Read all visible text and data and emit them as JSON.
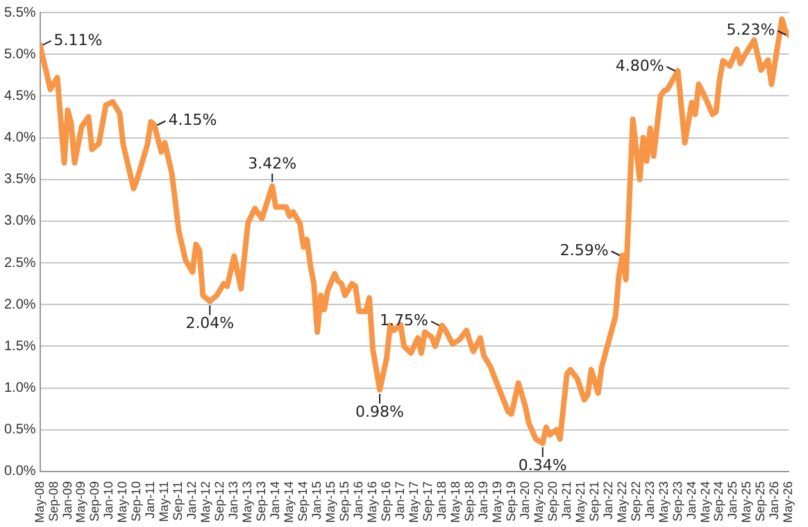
{
  "chart_data": {
    "type": "line",
    "x": [
      "2008-05",
      "2008-08",
      "2008-10",
      "2008-12",
      "2009-01",
      "2009-02",
      "2009-03",
      "2009-05",
      "2009-07",
      "2009-08",
      "2009-10",
      "2009-12",
      "2010-02",
      "2010-04",
      "2010-05",
      "2010-08",
      "2010-09",
      "2010-12",
      "2011-01",
      "2011-02",
      "2011-04",
      "2011-05",
      "2011-07",
      "2011-08",
      "2011-09",
      "2011-11",
      "2012-01",
      "2012-02",
      "2012-03",
      "2012-04",
      "2012-06",
      "2012-08",
      "2012-10",
      "2012-11",
      "2013-01",
      "2013-03",
      "2013-05",
      "2013-07",
      "2013-09",
      "2013-12",
      "2014-01",
      "2014-04",
      "2014-05",
      "2014-06",
      "2014-08",
      "2014-09",
      "2014-10",
      "2014-11",
      "2014-12",
      "2015-01",
      "2015-02",
      "2015-03",
      "2015-04",
      "2015-06",
      "2015-07",
      "2015-08",
      "2015-09",
      "2015-11",
      "2015-12",
      "2016-01",
      "2016-03",
      "2016-04",
      "2016-05",
      "2016-07",
      "2016-09",
      "2016-10",
      "2016-11",
      "2017-01",
      "2017-02",
      "2017-04",
      "2017-06",
      "2017-07",
      "2017-08",
      "2017-10",
      "2017-11",
      "2018-01",
      "2018-02",
      "2018-04",
      "2018-06",
      "2018-08",
      "2018-09",
      "2018-10",
      "2018-12",
      "2019-01",
      "2019-03",
      "2019-04",
      "2019-08",
      "2019-09",
      "2019-11",
      "2020-01",
      "2020-02",
      "2020-04",
      "2020-06",
      "2020-07",
      "2020-08",
      "2020-10",
      "2020-11",
      "2021-01",
      "2021-02",
      "2021-04",
      "2021-06",
      "2021-07",
      "2021-08",
      "2021-10",
      "2021-11",
      "2022-03",
      "2022-04",
      "2022-05",
      "2022-06",
      "2022-08",
      "2022-10",
      "2022-11",
      "2022-12",
      "2023-01",
      "2023-02",
      "2023-04",
      "2023-05",
      "2023-06",
      "2023-09",
      "2023-11",
      "2024-01",
      "2024-02",
      "2024-03",
      "2024-05",
      "2024-07",
      "2024-08",
      "2024-09",
      "2024-10",
      "2024-12",
      "2025-02",
      "2025-03",
      "2025-04",
      "2025-07",
      "2025-09",
      "2025-11",
      "2025-12",
      "2026-03",
      "2026-04",
      "2026-05"
    ],
    "series": [
      {
        "color": "#f79646",
        "values": [
          5.11,
          4.58,
          4.72,
          3.7,
          4.33,
          4.17,
          3.7,
          4.13,
          4.25,
          3.86,
          3.93,
          4.39,
          4.43,
          4.29,
          3.92,
          3.39,
          3.5,
          3.92,
          4.19,
          4.15,
          3.83,
          3.94,
          3.58,
          3.25,
          2.89,
          2.53,
          2.39,
          2.72,
          2.65,
          2.11,
          2.04,
          2.11,
          2.25,
          2.22,
          2.58,
          2.19,
          2.98,
          3.15,
          3.03,
          3.42,
          3.17,
          3.17,
          3.06,
          3.11,
          2.97,
          2.69,
          2.78,
          2.47,
          2.25,
          1.67,
          2.11,
          1.94,
          2.17,
          2.37,
          2.28,
          2.25,
          2.11,
          2.25,
          2.22,
          1.92,
          1.92,
          2.08,
          1.47,
          0.98,
          1.36,
          1.75,
          1.69,
          1.76,
          1.5,
          1.42,
          1.6,
          1.42,
          1.67,
          1.61,
          1.5,
          1.75,
          1.69,
          1.53,
          1.58,
          1.69,
          1.56,
          1.44,
          1.6,
          1.39,
          1.25,
          1.14,
          0.72,
          0.69,
          1.06,
          0.78,
          0.58,
          0.39,
          0.34,
          0.53,
          0.44,
          0.5,
          0.39,
          1.17,
          1.22,
          1.11,
          0.86,
          0.92,
          1.22,
          0.94,
          1.25,
          1.86,
          2.36,
          2.59,
          2.3,
          4.22,
          3.5,
          4.0,
          3.72,
          4.11,
          3.78,
          4.5,
          4.56,
          4.58,
          4.8,
          3.94,
          4.42,
          4.28,
          4.64,
          4.47,
          4.28,
          4.31,
          4.69,
          4.92,
          4.86,
          5.06,
          4.89,
          4.97,
          5.17,
          4.81,
          4.93,
          4.64,
          5.42,
          5.28,
          5.23
        ]
      }
    ],
    "xlim": [
      "2008-05",
      "2026-05"
    ],
    "xticks": [
      {
        "value": "2008-05",
        "label": "May-08"
      },
      {
        "value": "2008-09",
        "label": "Sep-08"
      },
      {
        "value": "2009-01",
        "label": "Jan-09"
      },
      {
        "value": "2009-05",
        "label": "May-09"
      },
      {
        "value": "2009-09",
        "label": "Sep-09"
      },
      {
        "value": "2010-01",
        "label": "Jan-10"
      },
      {
        "value": "2010-05",
        "label": "May-10"
      },
      {
        "value": "2010-09",
        "label": "Sep-10"
      },
      {
        "value": "2011-01",
        "label": "Jan-11"
      },
      {
        "value": "2011-05",
        "label": "May-11"
      },
      {
        "value": "2011-09",
        "label": "Sep-11"
      },
      {
        "value": "2012-01",
        "label": "Jan-12"
      },
      {
        "value": "2012-05",
        "label": "May-12"
      },
      {
        "value": "2012-09",
        "label": "Sep-12"
      },
      {
        "value": "2013-01",
        "label": "Jan-13"
      },
      {
        "value": "2013-05",
        "label": "May-13"
      },
      {
        "value": "2013-09",
        "label": "Sep-13"
      },
      {
        "value": "2014-01",
        "label": "Jan-14"
      },
      {
        "value": "2014-05",
        "label": "May-14"
      },
      {
        "value": "2014-09",
        "label": "Sep-14"
      },
      {
        "value": "2015-01",
        "label": "Jan-15"
      },
      {
        "value": "2015-05",
        "label": "May-15"
      },
      {
        "value": "2015-09",
        "label": "Sep-15"
      },
      {
        "value": "2016-01",
        "label": "Jan-16"
      },
      {
        "value": "2016-05",
        "label": "May-16"
      },
      {
        "value": "2016-09",
        "label": "Sep-16"
      },
      {
        "value": "2017-01",
        "label": "Jan-17"
      },
      {
        "value": "2017-05",
        "label": "May-17"
      },
      {
        "value": "2017-09",
        "label": "Sep-17"
      },
      {
        "value": "2018-01",
        "label": "Jan-18"
      },
      {
        "value": "2018-05",
        "label": "May-18"
      },
      {
        "value": "2018-09",
        "label": "Sep-18"
      },
      {
        "value": "2019-01",
        "label": "Jan-19"
      },
      {
        "value": "2019-05",
        "label": "May-19"
      },
      {
        "value": "2019-09",
        "label": "Sep-19"
      },
      {
        "value": "2020-01",
        "label": "Jan-20"
      },
      {
        "value": "2020-05",
        "label": "May-20"
      },
      {
        "value": "2020-09",
        "label": "Sep-20"
      },
      {
        "value": "2021-01",
        "label": "Jan-21"
      },
      {
        "value": "2021-05",
        "label": "May-21"
      },
      {
        "value": "2021-09",
        "label": "Sep-21"
      },
      {
        "value": "2022-01",
        "label": "Jan-22"
      },
      {
        "value": "2022-05",
        "label": "May-22"
      },
      {
        "value": "2022-09",
        "label": "Sep-22"
      },
      {
        "value": "2023-01",
        "label": "Jan-23"
      },
      {
        "value": "2023-05",
        "label": "May-23"
      },
      {
        "value": "2023-09",
        "label": "Sep-23"
      },
      {
        "value": "2024-01",
        "label": "Jan-24"
      },
      {
        "value": "2024-05",
        "label": "May-24"
      },
      {
        "value": "2024-09",
        "label": "Sep-24"
      },
      {
        "value": "2025-01",
        "label": "Jan-25"
      },
      {
        "value": "2025-05",
        "label": "May-25"
      },
      {
        "value": "2025-09",
        "label": "Sep-25"
      },
      {
        "value": "2026-01",
        "label": "Jan-26"
      },
      {
        "value": "2026-05",
        "label": "May-26"
      }
    ],
    "ylim": [
      0,
      5.5
    ],
    "yticks": [
      {
        "value": 0,
        "label": "0.0%"
      },
      {
        "value": 0.5,
        "label": "0.5%"
      },
      {
        "value": 1,
        "label": "1.0%"
      },
      {
        "value": 1.5,
        "label": "1.5%"
      },
      {
        "value": 2,
        "label": "2.0%"
      },
      {
        "value": 2.5,
        "label": "2.5%"
      },
      {
        "value": 3,
        "label": "3.0%"
      },
      {
        "value": 3.5,
        "label": "3.5%"
      },
      {
        "value": 4,
        "label": "4.0%"
      },
      {
        "value": 4.5,
        "label": "4.5%"
      },
      {
        "value": 5,
        "label": "5.0%"
      },
      {
        "value": 5.5,
        "label": "5.5%"
      }
    ],
    "annotations": [
      {
        "text": "5.11%",
        "x": "2008-05",
        "y": 5.11
      },
      {
        "text": "4.15%",
        "x": "2011-02",
        "y": 4.15
      },
      {
        "text": "2.04%",
        "x": "2012-06",
        "y": 2.04
      },
      {
        "text": "3.42%",
        "x": "2013-12",
        "y": 3.42
      },
      {
        "text": "0.98%",
        "x": "2016-07",
        "y": 0.98
      },
      {
        "text": "1.75%",
        "x": "2018-01",
        "y": 1.75
      },
      {
        "text": "0.34%",
        "x": "2020-06",
        "y": 0.34
      },
      {
        "text": "2.59%",
        "x": "2022-05",
        "y": 2.59
      },
      {
        "text": "4.80%",
        "x": "2023-09",
        "y": 4.8
      },
      {
        "text": "5.23%",
        "x": "2026-05",
        "y": 5.23
      }
    ],
    "grid": "y",
    "legend": false,
    "marker": "none",
    "line_style": "solid"
  }
}
